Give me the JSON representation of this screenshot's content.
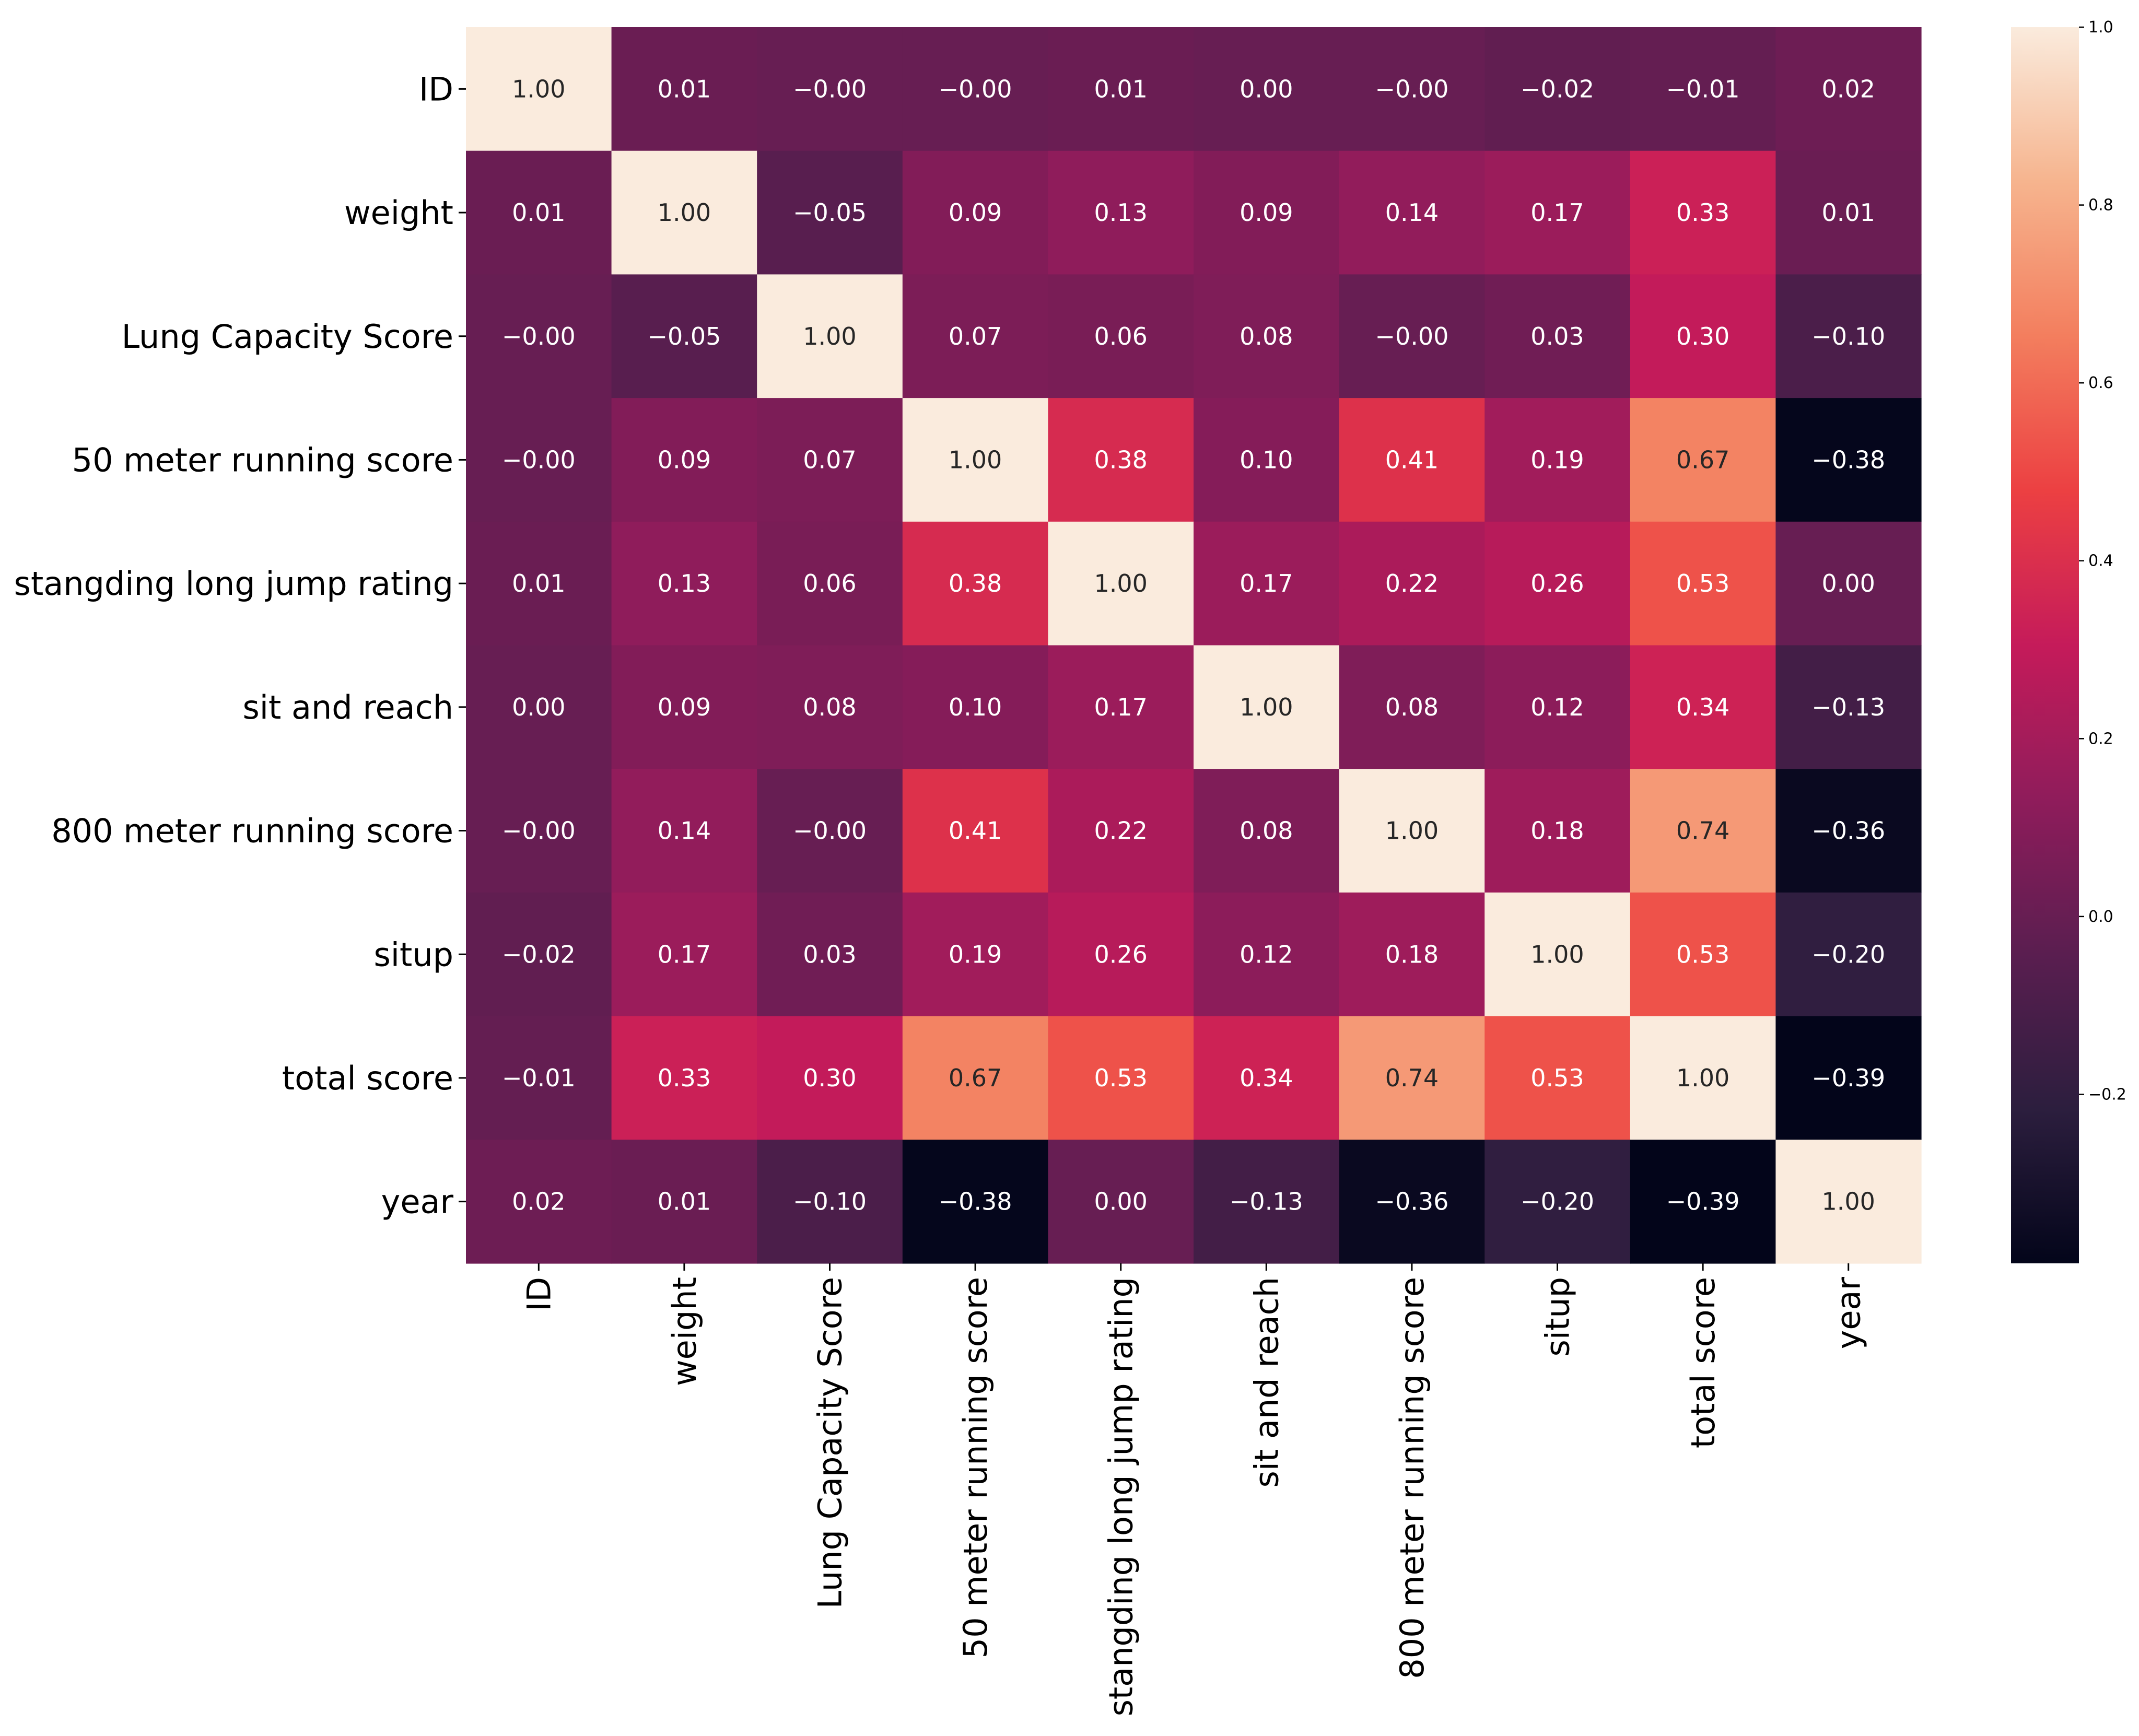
{
  "chart_data": {
    "type": "heatmap",
    "title": "",
    "xlabel": "",
    "ylabel": "",
    "labels": [
      "ID",
      "weight",
      "Lung Capacity Score",
      "50 meter running score",
      "stangding long jump rating",
      "sit and reach",
      "800 meter running score",
      "situp",
      "total score",
      "year"
    ],
    "values": [
      [
        1.0,
        0.01,
        -0.0,
        -0.0,
        0.01,
        0.0,
        -0.0,
        -0.02,
        -0.01,
        0.02
      ],
      [
        0.01,
        1.0,
        -0.05,
        0.09,
        0.13,
        0.09,
        0.14,
        0.17,
        0.33,
        0.01
      ],
      [
        -0.0,
        -0.05,
        1.0,
        0.07,
        0.06,
        0.08,
        -0.0,
        0.03,
        0.3,
        -0.1
      ],
      [
        -0.0,
        0.09,
        0.07,
        1.0,
        0.38,
        0.1,
        0.41,
        0.19,
        0.67,
        -0.38
      ],
      [
        0.01,
        0.13,
        0.06,
        0.38,
        1.0,
        0.17,
        0.22,
        0.26,
        0.53,
        0.0
      ],
      [
        0.0,
        0.09,
        0.08,
        0.1,
        0.17,
        1.0,
        0.08,
        0.12,
        0.34,
        -0.13
      ],
      [
        -0.0,
        0.14,
        -0.0,
        0.41,
        0.22,
        0.08,
        1.0,
        0.18,
        0.74,
        -0.36
      ],
      [
        -0.02,
        0.17,
        0.03,
        0.19,
        0.26,
        0.12,
        0.18,
        1.0,
        0.53,
        -0.2
      ],
      [
        -0.01,
        0.33,
        0.3,
        0.67,
        0.53,
        0.34,
        0.74,
        0.53,
        1.0,
        -0.39
      ],
      [
        0.02,
        0.01,
        -0.1,
        -0.38,
        0.0,
        -0.13,
        -0.36,
        -0.2,
        -0.39,
        1.0
      ]
    ],
    "cell_labels": [
      [
        "1.00",
        "0.01",
        "−0.00",
        "−0.00",
        "0.01",
        "0.00",
        "−0.00",
        "−0.02",
        "−0.01",
        "0.02"
      ],
      [
        "0.01",
        "1.00",
        "−0.05",
        "0.09",
        "0.13",
        "0.09",
        "0.14",
        "0.17",
        "0.33",
        "0.01"
      ],
      [
        "−0.00",
        "−0.05",
        "1.00",
        "0.07",
        "0.06",
        "0.08",
        "−0.00",
        "0.03",
        "0.30",
        "−0.10"
      ],
      [
        "−0.00",
        "0.09",
        "0.07",
        "1.00",
        "0.38",
        "0.10",
        "0.41",
        "0.19",
        "0.67",
        "−0.38"
      ],
      [
        "0.01",
        "0.13",
        "0.06",
        "0.38",
        "1.00",
        "0.17",
        "0.22",
        "0.26",
        "0.53",
        "0.00"
      ],
      [
        "0.00",
        "0.09",
        "0.08",
        "0.10",
        "0.17",
        "1.00",
        "0.08",
        "0.12",
        "0.34",
        "−0.13"
      ],
      [
        "−0.00",
        "0.14",
        "−0.00",
        "0.41",
        "0.22",
        "0.08",
        "1.00",
        "0.18",
        "0.74",
        "−0.36"
      ],
      [
        "−0.02",
        "0.17",
        "0.03",
        "0.19",
        "0.26",
        "0.12",
        "0.18",
        "1.00",
        "0.53",
        "−0.20"
      ],
      [
        "−0.01",
        "0.33",
        "0.30",
        "0.67",
        "0.53",
        "0.34",
        "0.74",
        "0.53",
        "1.00",
        "−0.39"
      ],
      [
        "0.02",
        "0.01",
        "−0.10",
        "−0.38",
        "0.00",
        "−0.13",
        "−0.36",
        "−0.20",
        "−0.39",
        "1.00"
      ]
    ],
    "vmin": -0.39,
    "vmax": 1.0,
    "colormap": "rocket",
    "colorbar": {
      "ticks": [
        1.0,
        0.8,
        0.6,
        0.4,
        0.2,
        0.0,
        -0.2
      ],
      "tick_labels": [
        "1.0",
        "0.8",
        "0.6",
        "0.4",
        "0.2",
        "0.0",
        "−0.2"
      ],
      "position": "right"
    },
    "grid": false
  },
  "colormap_stops": [
    "#03051a",
    "#2c1e3e",
    "#5a1e50",
    "#8f1c5b",
    "#c51b5a",
    "#ec4042",
    "#f37e5e",
    "#f6b48e",
    "#faebdd"
  ]
}
